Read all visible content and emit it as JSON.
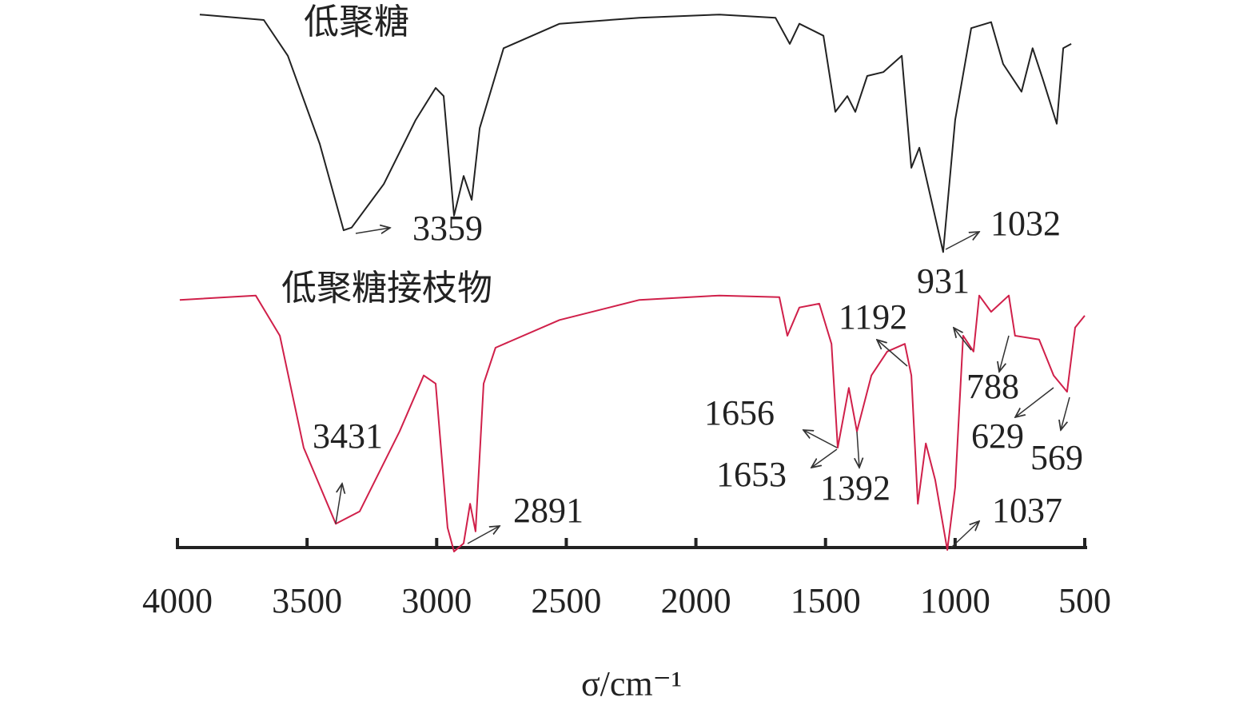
{
  "chart_data": {
    "type": "line",
    "xlabel": "σ/cm⁻¹",
    "xlim": [
      4000,
      500
    ],
    "xticks": [
      4000,
      3500,
      3000,
      2500,
      2000,
      1500,
      1000,
      500
    ],
    "ylim": [
      0,
      100
    ],
    "series": [
      {
        "name": "低聚糖",
        "color": "#222222",
        "x": [
          3914,
          3667,
          3574,
          3451,
          3359,
          3328,
          3204,
          3081,
          3004,
          2973,
          2933,
          2896,
          2865,
          2834,
          2742,
          2526,
          2218,
          1909,
          1693,
          1638,
          1601,
          1508,
          1462,
          1416,
          1385,
          1339,
          1277,
          1206,
          1169,
          1138,
          1092,
          1046,
          1000,
          938,
          861,
          815,
          744,
          701,
          661,
          608,
          583,
          552
        ],
        "values": [
          98.8,
          97.8,
          91.2,
          75.0,
          59.1,
          59.6,
          67.6,
          79.4,
          85.3,
          83.8,
          61.8,
          69.1,
          64.7,
          77.9,
          92.6,
          97.1,
          98.2,
          98.8,
          98.2,
          93.4,
          97.1,
          94.9,
          80.9,
          83.8,
          80.9,
          87.5,
          88.2,
          91.2,
          70.6,
          74.3,
          64.7,
          55.1,
          79.4,
          96.3,
          97.4,
          89.7,
          84.6,
          92.6,
          86.8,
          78.7,
          92.6,
          93.4
        ],
        "peaks": [
          3359,
          1032
        ]
      },
      {
        "name": "低聚糖接枝物",
        "color": "#d0204a",
        "x": [
          3991,
          3698,
          3605,
          3513,
          3389,
          3297,
          3143,
          3050,
          3004,
          2958,
          2933,
          2896,
          2871,
          2850,
          2819,
          2773,
          2526,
          2218,
          1909,
          1678,
          1647,
          1601,
          1524,
          1477,
          1453,
          1410,
          1379,
          1323,
          1262,
          1194,
          1169,
          1144,
          1113,
          1077,
          1030,
          1000,
          969,
          929,
          907,
          861,
          793,
          769,
          676,
          620,
          568,
          537,
          500
        ],
        "values": [
          46.3,
          47.1,
          39.7,
          19.1,
          5.1,
          7.4,
          22.1,
          32.4,
          30.9,
          4.4,
          0,
          1.5,
          8.8,
          3.7,
          30.9,
          37.5,
          42.6,
          46.3,
          47.1,
          46.8,
          39.7,
          44.9,
          45.6,
          38.2,
          19.1,
          30.1,
          22.1,
          32.4,
          36.8,
          38.2,
          32.4,
          8.8,
          19.9,
          13.2,
          0.3,
          11.8,
          39.7,
          36.8,
          47.1,
          44.1,
          47.1,
          39.7,
          39.0,
          32.4,
          29.4,
          41.2,
          43.4
        ],
        "peaks": [
          3431,
          2891,
          1656,
          1653,
          1392,
          1192,
          931,
          1037,
          788,
          629,
          569
        ]
      }
    ]
  }
}
